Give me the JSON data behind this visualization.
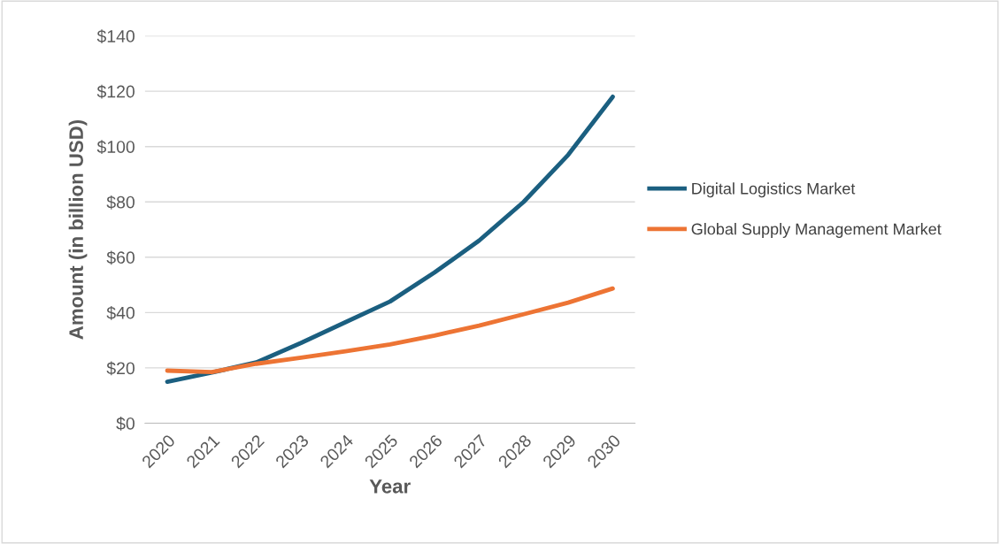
{
  "chart_data": {
    "type": "line",
    "xlabel": "Year",
    "ylabel": "Amount (in billion USD)",
    "categories": [
      "2020",
      "2021",
      "2022",
      "2023",
      "2024",
      "2025",
      "2026",
      "2027",
      "2028",
      "2029",
      "2030"
    ],
    "series": [
      {
        "name": "Digital Logistics Market",
        "color": "#1b5f80",
        "values": [
          15,
          18.3,
          22,
          29,
          36.5,
          44,
          54.5,
          66,
          80,
          97,
          118
        ]
      },
      {
        "name": "Global Supply Management Market",
        "color": "#ed7434",
        "values": [
          19,
          18.5,
          21.5,
          23.7,
          26,
          28.5,
          31.7,
          35.3,
          39.4,
          43.6,
          48.7
        ]
      }
    ],
    "ylim": [
      0,
      140
    ],
    "yticks": [
      {
        "value": 0,
        "label": "$0"
      },
      {
        "value": 20,
        "label": "$20"
      },
      {
        "value": 40,
        "label": "$40"
      },
      {
        "value": 60,
        "label": "$60"
      },
      {
        "value": 80,
        "label": "$80"
      },
      {
        "value": 100,
        "label": "$100"
      },
      {
        "value": 120,
        "label": "$120"
      },
      {
        "value": 140,
        "label": "$140"
      }
    ],
    "grid": "y",
    "legend": "right",
    "marker": "none",
    "line_style": "solid"
  }
}
